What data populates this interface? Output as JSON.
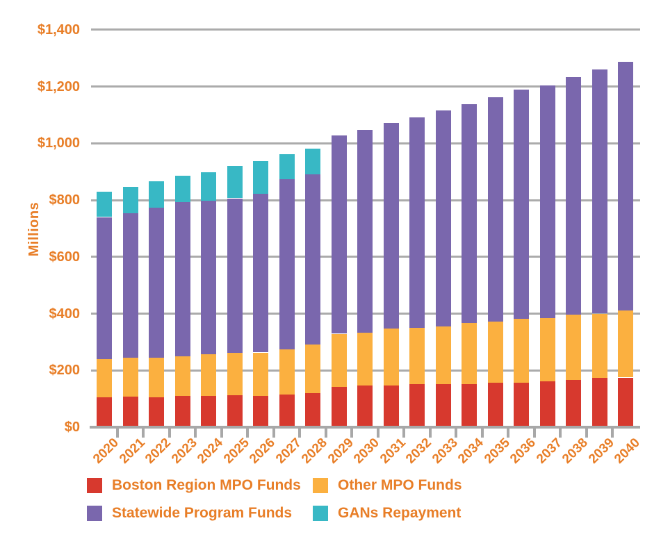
{
  "chart_data": {
    "type": "bar",
    "stacked": true,
    "title": "",
    "xlabel": "",
    "ylabel": "Millions",
    "categories": [
      "2020",
      "2021",
      "2022",
      "2023",
      "2024",
      "2025",
      "2026",
      "2027",
      "2028",
      "2029",
      "2030",
      "2031",
      "2032",
      "2033",
      "2034",
      "2035",
      "2036",
      "2037",
      "2038",
      "2039",
      "2040"
    ],
    "series": [
      {
        "name": "Boston Region MPO Funds",
        "color": "#D7392E",
        "values": [
          105,
          108,
          106,
          110,
          111,
          112,
          111,
          114,
          119,
          141,
          146,
          146,
          151,
          151,
          151,
          156,
          156,
          161,
          167,
          175,
          175
        ]
      },
      {
        "name": "Other MPO Funds",
        "color": "#FBB040",
        "values": [
          135,
          137,
          139,
          140,
          146,
          149,
          152,
          161,
          173,
          188,
          187,
          201,
          198,
          204,
          216,
          215,
          226,
          224,
          229,
          225,
          235
        ]
      },
      {
        "name": "Statewide Program Funds",
        "color": "#7A67AD",
        "values": [
          500,
          508,
          527,
          543,
          541,
          545,
          560,
          599,
          599,
          698,
          715,
          724,
          741,
          760,
          770,
          792,
          806,
          818,
          837,
          860,
          878
        ]
      },
      {
        "name": "GANs Repayment",
        "color": "#38B8C5",
        "values": [
          90,
          93,
          94,
          92,
          101,
          114,
          115,
          88,
          91,
          0,
          0,
          0,
          0,
          0,
          0,
          0,
          0,
          0,
          0,
          0,
          0
        ]
      }
    ],
    "y_axis": {
      "min": 0,
      "max": 1400,
      "tick_step": 200,
      "tick_labels": [
        "$0",
        "$200",
        "$400",
        "$600",
        "$800",
        "$1,000",
        "$1,200",
        "$1,400"
      ]
    },
    "grid": true,
    "legend_position": "bottom",
    "text_color": "#E87E27",
    "grid_color": "#ABABAB"
  }
}
